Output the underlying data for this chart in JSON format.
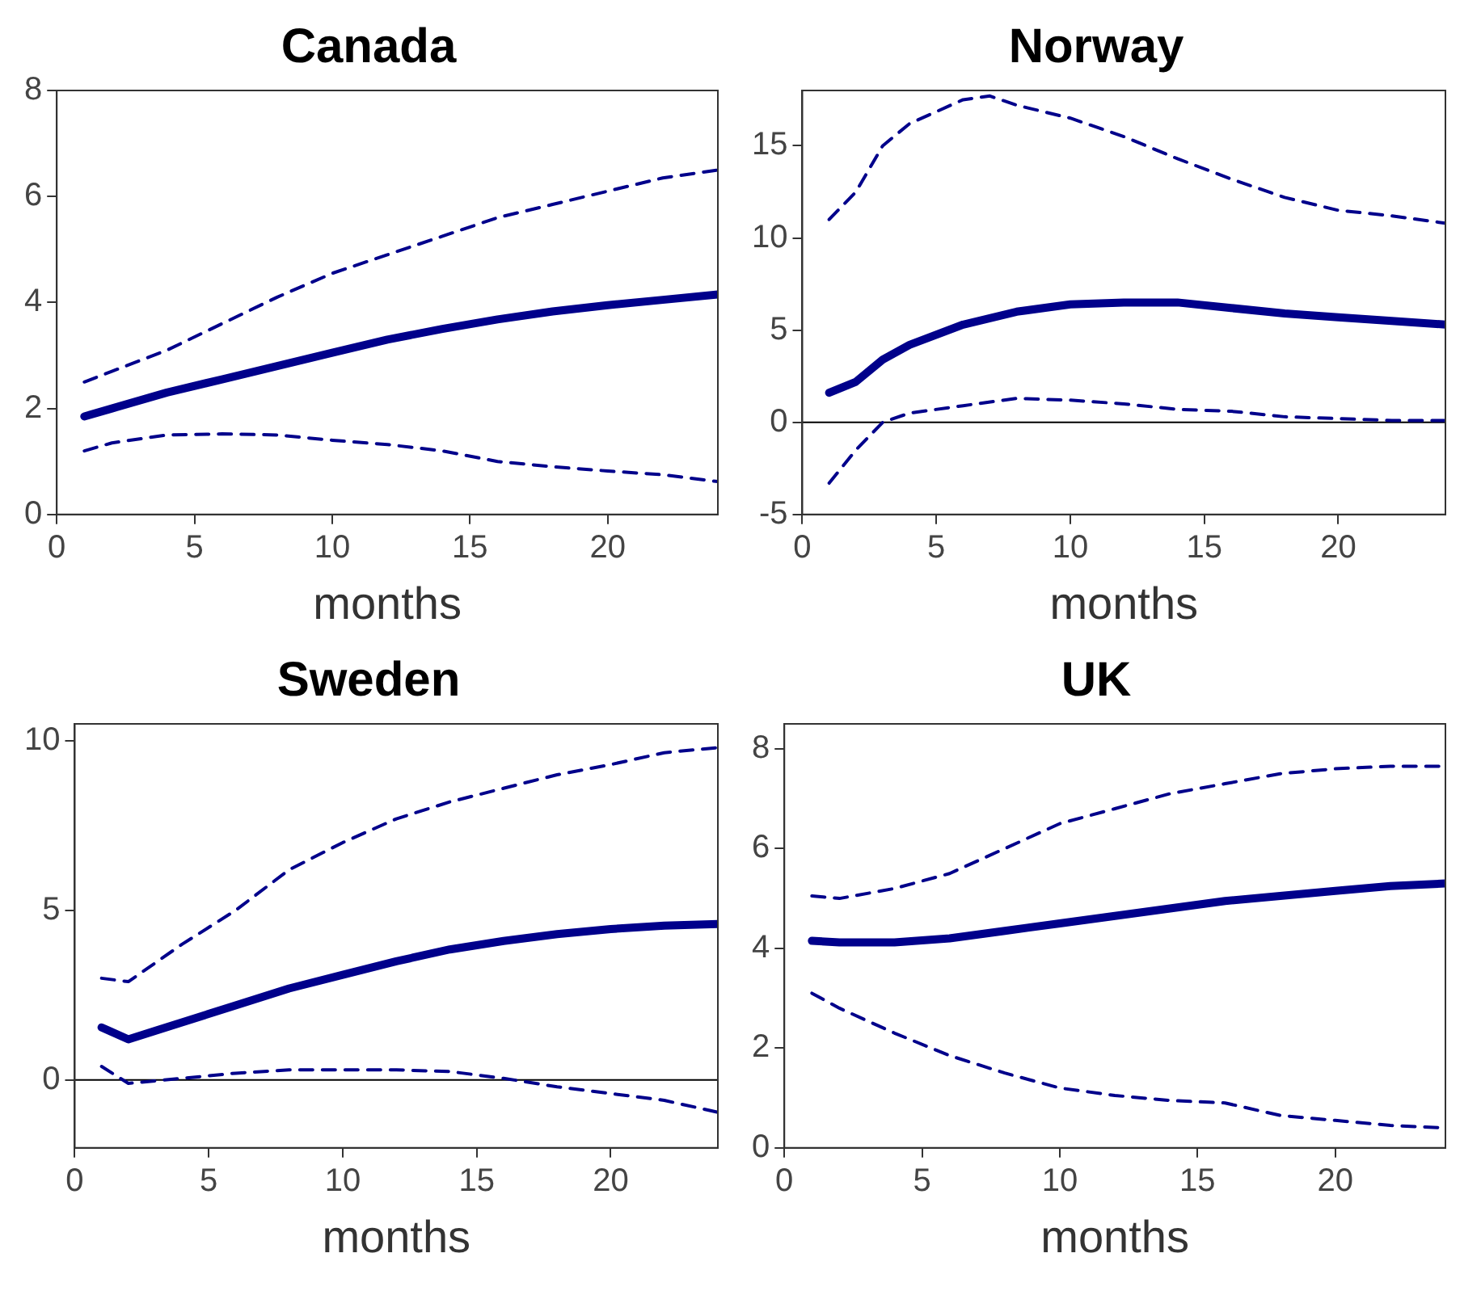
{
  "chart_data": [
    {
      "type": "line",
      "title": "Canada",
      "xlabel": "months",
      "xlim": [
        0,
        24
      ],
      "xticks": [
        0,
        5,
        10,
        15,
        20
      ],
      "ylim": [
        0,
        8
      ],
      "yticks": [
        0,
        2,
        4,
        6,
        8
      ],
      "grid": false,
      "legend": false,
      "marker": "none",
      "series": [
        {
          "color": "#00008b",
          "line_style": "solid",
          "x": [
            1,
            2,
            4,
            6,
            8,
            10,
            12,
            14,
            16,
            18,
            20,
            22,
            24
          ],
          "values": [
            1.85,
            2.0,
            2.3,
            2.55,
            2.8,
            3.05,
            3.3,
            3.5,
            3.68,
            3.83,
            3.95,
            4.05,
            4.15
          ]
        },
        {
          "color": "#00008b",
          "line_style": "dashed",
          "x": [
            1,
            2,
            4,
            6,
            8,
            10,
            12,
            14,
            16,
            18,
            20,
            22,
            24
          ],
          "values": [
            2.5,
            2.7,
            3.1,
            3.6,
            4.1,
            4.55,
            4.9,
            5.25,
            5.6,
            5.85,
            6.1,
            6.35,
            6.5
          ]
        },
        {
          "color": "#00008b",
          "line_style": "dashed",
          "x": [
            1,
            2,
            4,
            6,
            8,
            10,
            12,
            14,
            16,
            18,
            20,
            22,
            24
          ],
          "values": [
            1.2,
            1.35,
            1.5,
            1.52,
            1.5,
            1.4,
            1.32,
            1.2,
            1.0,
            0.9,
            0.82,
            0.75,
            0.62
          ]
        }
      ]
    },
    {
      "type": "line",
      "title": "Norway",
      "xlabel": "months",
      "xlim": [
        0,
        24
      ],
      "xticks": [
        0,
        5,
        10,
        15,
        20
      ],
      "ylim": [
        -5,
        18
      ],
      "yticks": [
        -5,
        0,
        5,
        10,
        15
      ],
      "grid": false,
      "legend": false,
      "marker": "none",
      "ref_lines": [
        {
          "axis": "y",
          "value": 0,
          "color": "#000000"
        }
      ],
      "series": [
        {
          "color": "#00008b",
          "line_style": "solid",
          "x": [
            1,
            2,
            3,
            4,
            6,
            8,
            10,
            12,
            14,
            16,
            18,
            20,
            22,
            24
          ],
          "values": [
            1.6,
            2.2,
            3.4,
            4.2,
            5.3,
            6.0,
            6.4,
            6.5,
            6.5,
            6.2,
            5.9,
            5.7,
            5.5,
            5.3
          ]
        },
        {
          "color": "#00008b",
          "line_style": "dashed",
          "x": [
            1,
            2,
            3,
            4,
            6,
            7,
            8,
            10,
            12,
            14,
            16,
            18,
            20,
            22,
            24
          ],
          "values": [
            11,
            12.5,
            15,
            16.2,
            17.5,
            17.7,
            17.2,
            16.5,
            15.5,
            14.3,
            13.2,
            12.2,
            11.5,
            11.2,
            10.8
          ]
        },
        {
          "color": "#00008b",
          "line_style": "dashed",
          "x": [
            1,
            2,
            3,
            4,
            6,
            8,
            10,
            12,
            14,
            16,
            18,
            20,
            22,
            24
          ],
          "values": [
            -3.3,
            -1.5,
            0,
            0.5,
            0.9,
            1.3,
            1.2,
            1.0,
            0.7,
            0.6,
            0.3,
            0.2,
            0.1,
            0.1
          ]
        }
      ]
    },
    {
      "type": "line",
      "title": "Sweden",
      "xlabel": "months",
      "xlim": [
        0,
        24
      ],
      "xticks": [
        0,
        5,
        10,
        15,
        20
      ],
      "ylim": [
        -2,
        10.5
      ],
      "yticks": [
        0,
        5,
        10
      ],
      "grid": false,
      "legend": false,
      "marker": "none",
      "ref_lines": [
        {
          "axis": "y",
          "value": 0,
          "color": "#000000"
        }
      ],
      "series": [
        {
          "color": "#00008b",
          "line_style": "solid",
          "x": [
            1,
            2,
            4,
            6,
            8,
            10,
            12,
            14,
            16,
            18,
            20,
            22,
            24
          ],
          "values": [
            1.55,
            1.2,
            1.7,
            2.2,
            2.7,
            3.1,
            3.5,
            3.85,
            4.1,
            4.3,
            4.45,
            4.55,
            4.6
          ]
        },
        {
          "color": "#00008b",
          "line_style": "dashed",
          "x": [
            1,
            2,
            4,
            6,
            8,
            10,
            12,
            14,
            16,
            18,
            20,
            22,
            24
          ],
          "values": [
            3.0,
            2.9,
            4.0,
            5.0,
            6.2,
            7.0,
            7.7,
            8.2,
            8.6,
            9.0,
            9.3,
            9.65,
            9.8
          ]
        },
        {
          "color": "#00008b",
          "line_style": "dashed",
          "x": [
            1,
            2,
            4,
            6,
            8,
            10,
            12,
            14,
            16,
            18,
            20,
            22,
            24
          ],
          "values": [
            0.4,
            -0.1,
            0.05,
            0.2,
            0.3,
            0.3,
            0.3,
            0.25,
            0.05,
            -0.2,
            -0.4,
            -0.6,
            -0.95
          ]
        }
      ]
    },
    {
      "type": "line",
      "title": "UK",
      "xlabel": "months",
      "xlim": [
        0,
        24
      ],
      "xticks": [
        0,
        5,
        10,
        15,
        20
      ],
      "ylim": [
        0,
        8.5
      ],
      "yticks": [
        0,
        2,
        4,
        6,
        8
      ],
      "grid": false,
      "legend": false,
      "marker": "none",
      "series": [
        {
          "color": "#00008b",
          "line_style": "solid",
          "x": [
            1,
            2,
            4,
            6,
            8,
            10,
            12,
            14,
            16,
            18,
            20,
            22,
            24
          ],
          "values": [
            4.15,
            4.12,
            4.12,
            4.2,
            4.35,
            4.5,
            4.65,
            4.8,
            4.95,
            5.05,
            5.15,
            5.25,
            5.3
          ]
        },
        {
          "color": "#00008b",
          "line_style": "dashed",
          "x": [
            1,
            2,
            4,
            6,
            8,
            10,
            12,
            14,
            16,
            18,
            20,
            22,
            24
          ],
          "values": [
            5.05,
            5.0,
            5.2,
            5.5,
            6.0,
            6.5,
            6.8,
            7.1,
            7.3,
            7.5,
            7.6,
            7.65,
            7.65
          ]
        },
        {
          "color": "#00008b",
          "line_style": "dashed",
          "x": [
            1,
            2,
            4,
            6,
            8,
            10,
            12,
            14,
            16,
            18,
            20,
            22,
            24
          ],
          "values": [
            3.1,
            2.8,
            2.3,
            1.85,
            1.5,
            1.2,
            1.05,
            0.95,
            0.9,
            0.65,
            0.55,
            0.45,
            0.4
          ]
        }
      ]
    }
  ]
}
